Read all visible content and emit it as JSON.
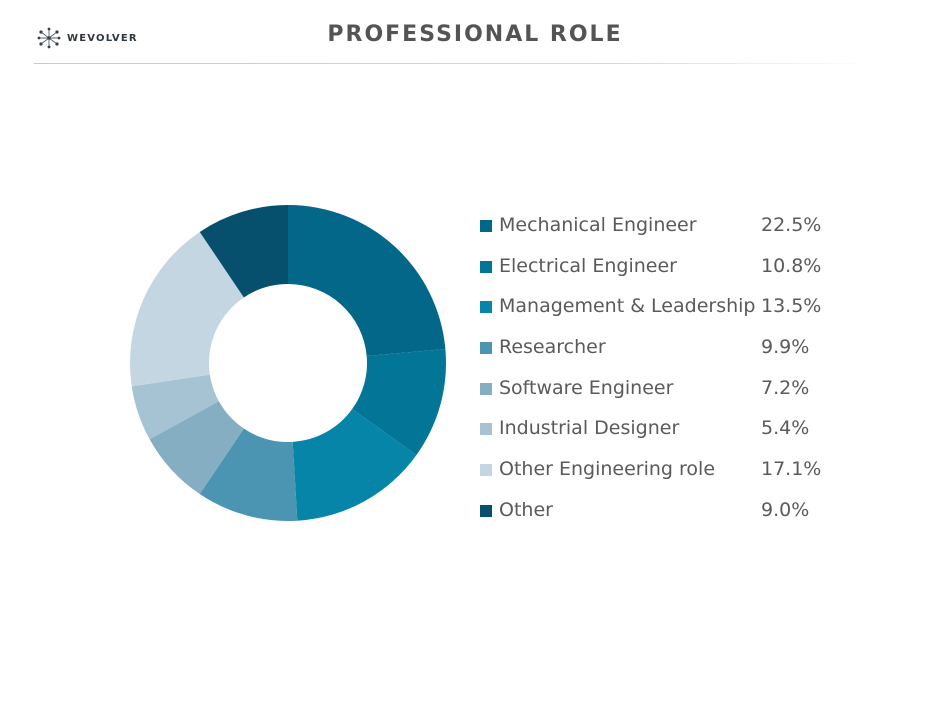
{
  "header": {
    "logo_text": "WEVOLVER",
    "title": "PROFESSIONAL ROLE"
  },
  "chart_data": {
    "type": "pie",
    "donut": true,
    "legend_placement": "right",
    "series": [
      {
        "label": "Mechanical Engineer",
        "value": 22.5,
        "display": "22.5%",
        "color": "#03678a"
      },
      {
        "label": "Electrical Engineer",
        "value": 10.8,
        "display": "10.8%",
        "color": "#037697"
      },
      {
        "label": "Management & Leadership",
        "value": 13.5,
        "display": "13.5%",
        "color": "#0685a8"
      },
      {
        "label": "Researcher",
        "value": 9.9,
        "display": "9.9%",
        "color": "#4b95b3"
      },
      {
        "label": "Software Engineer",
        "value": 7.2,
        "display": "7.2%",
        "color": "#85aec3"
      },
      {
        "label": "Industrial Designer",
        "value": 5.4,
        "display": "5.4%",
        "color": "#a6c3d3"
      },
      {
        "label": "Other Engineering role",
        "value": 17.1,
        "display": "17.1%",
        "color": "#c4d6e1"
      },
      {
        "label": "Other",
        "value": 9.0,
        "display": "9.0%",
        "color": "#07506d"
      }
    ]
  }
}
